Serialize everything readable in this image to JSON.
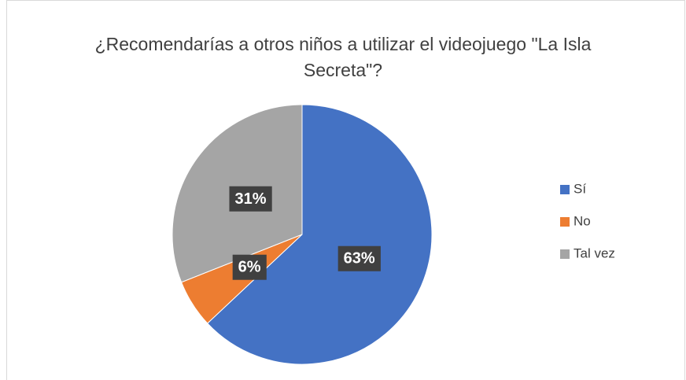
{
  "chart_data": {
    "type": "pie",
    "title": "¿Recomendarías a otros niños a utilizar el videojuego \"La Isla Secreta\"?",
    "categories": [
      "Sí",
      "No",
      "Tal vez"
    ],
    "values": [
      63,
      6,
      31
    ],
    "value_labels": [
      "63%",
      "6%",
      "31%"
    ],
    "colors": [
      "#4472c4",
      "#ed7d31",
      "#a5a5a5"
    ],
    "legend": "right"
  }
}
